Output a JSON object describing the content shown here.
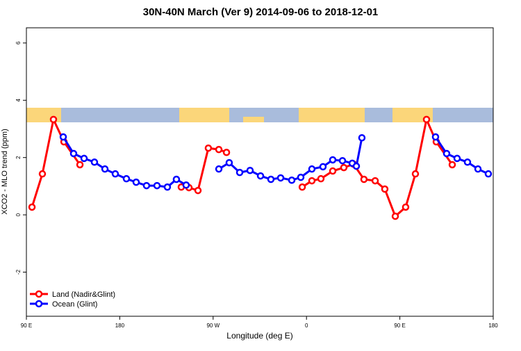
{
  "chart_data": {
    "type": "line",
    "title": "30N-40N March (Ver 9)   2014-09-06 to 2018-12-01",
    "x_label": "Longitude (deg E)",
    "y_label": "XCO2 - MLO trend (ppm)",
    "xlim": [
      90,
      540
    ],
    "xticks": [
      {
        "value": 90,
        "label": "90 E"
      },
      {
        "value": 180,
        "label": "180"
      },
      {
        "value": 270,
        "label": "90 W"
      },
      {
        "value": 360,
        "label": "0"
      },
      {
        "value": 450,
        "label": "90 E"
      },
      {
        "value": 540,
        "label": "180"
      }
    ],
    "ylim": [
      -3.54,
      6.53
    ],
    "yticks": [
      -2,
      0,
      2,
      4,
      6
    ],
    "legend": "bottom-left",
    "series": [
      {
        "name": "Land (Nadir&Glint)",
        "color": "#ff0000",
        "x": [
          95.4,
          105.4,
          116.1,
          126.2,
          141.6,
          null,
          239.3,
          246.7,
          255.4,
          265.4,
          275.5,
          282.9,
          null,
          355.9,
          365.2,
          373.9,
          385.3,
          396.0,
          405.4,
          415.4,
          426.2,
          435.5,
          445.6,
          455.6,
          465.0,
          475.7,
          485.1,
          500.5
        ],
        "values": [
          0.27,
          1.43,
          3.33,
          2.55,
          1.75,
          null,
          0.97,
          0.95,
          0.85,
          2.33,
          2.28,
          2.18,
          null,
          0.97,
          1.19,
          1.26,
          1.53,
          1.65,
          1.77,
          1.24,
          1.19,
          0.9,
          -0.05,
          0.27,
          1.43,
          3.33,
          2.55,
          1.75
        ]
      },
      {
        "name": "Ocean (Glint)",
        "color": "#0000ff",
        "x": [
          125.5,
          135.5,
          145.6,
          155.6,
          165.7,
          175.7,
          186.4,
          195.8,
          205.8,
          215.9,
          225.9,
          234.6,
          244.0,
          null,
          275.5,
          285.5,
          295.6,
          305.6,
          315.7,
          325.7,
          335.1,
          345.8,
          354.5,
          365.2,
          375.9,
          385.3,
          394.7,
          404.1,
          408.1,
          413.4,
          null,
          484.4,
          495.1,
          505.2,
          515.2,
          525.3,
          535.3
        ],
        "values": [
          2.72,
          2.14,
          1.97,
          1.84,
          1.6,
          1.43,
          1.26,
          1.14,
          1.02,
          1.02,
          0.97,
          1.24,
          1.04,
          null,
          1.6,
          1.82,
          1.48,
          1.55,
          1.36,
          1.24,
          1.29,
          1.21,
          1.31,
          1.6,
          1.68,
          1.92,
          1.89,
          1.8,
          1.7,
          2.69,
          null,
          2.72,
          2.14,
          1.97,
          1.84,
          1.6,
          1.43
        ]
      }
    ]
  }
}
